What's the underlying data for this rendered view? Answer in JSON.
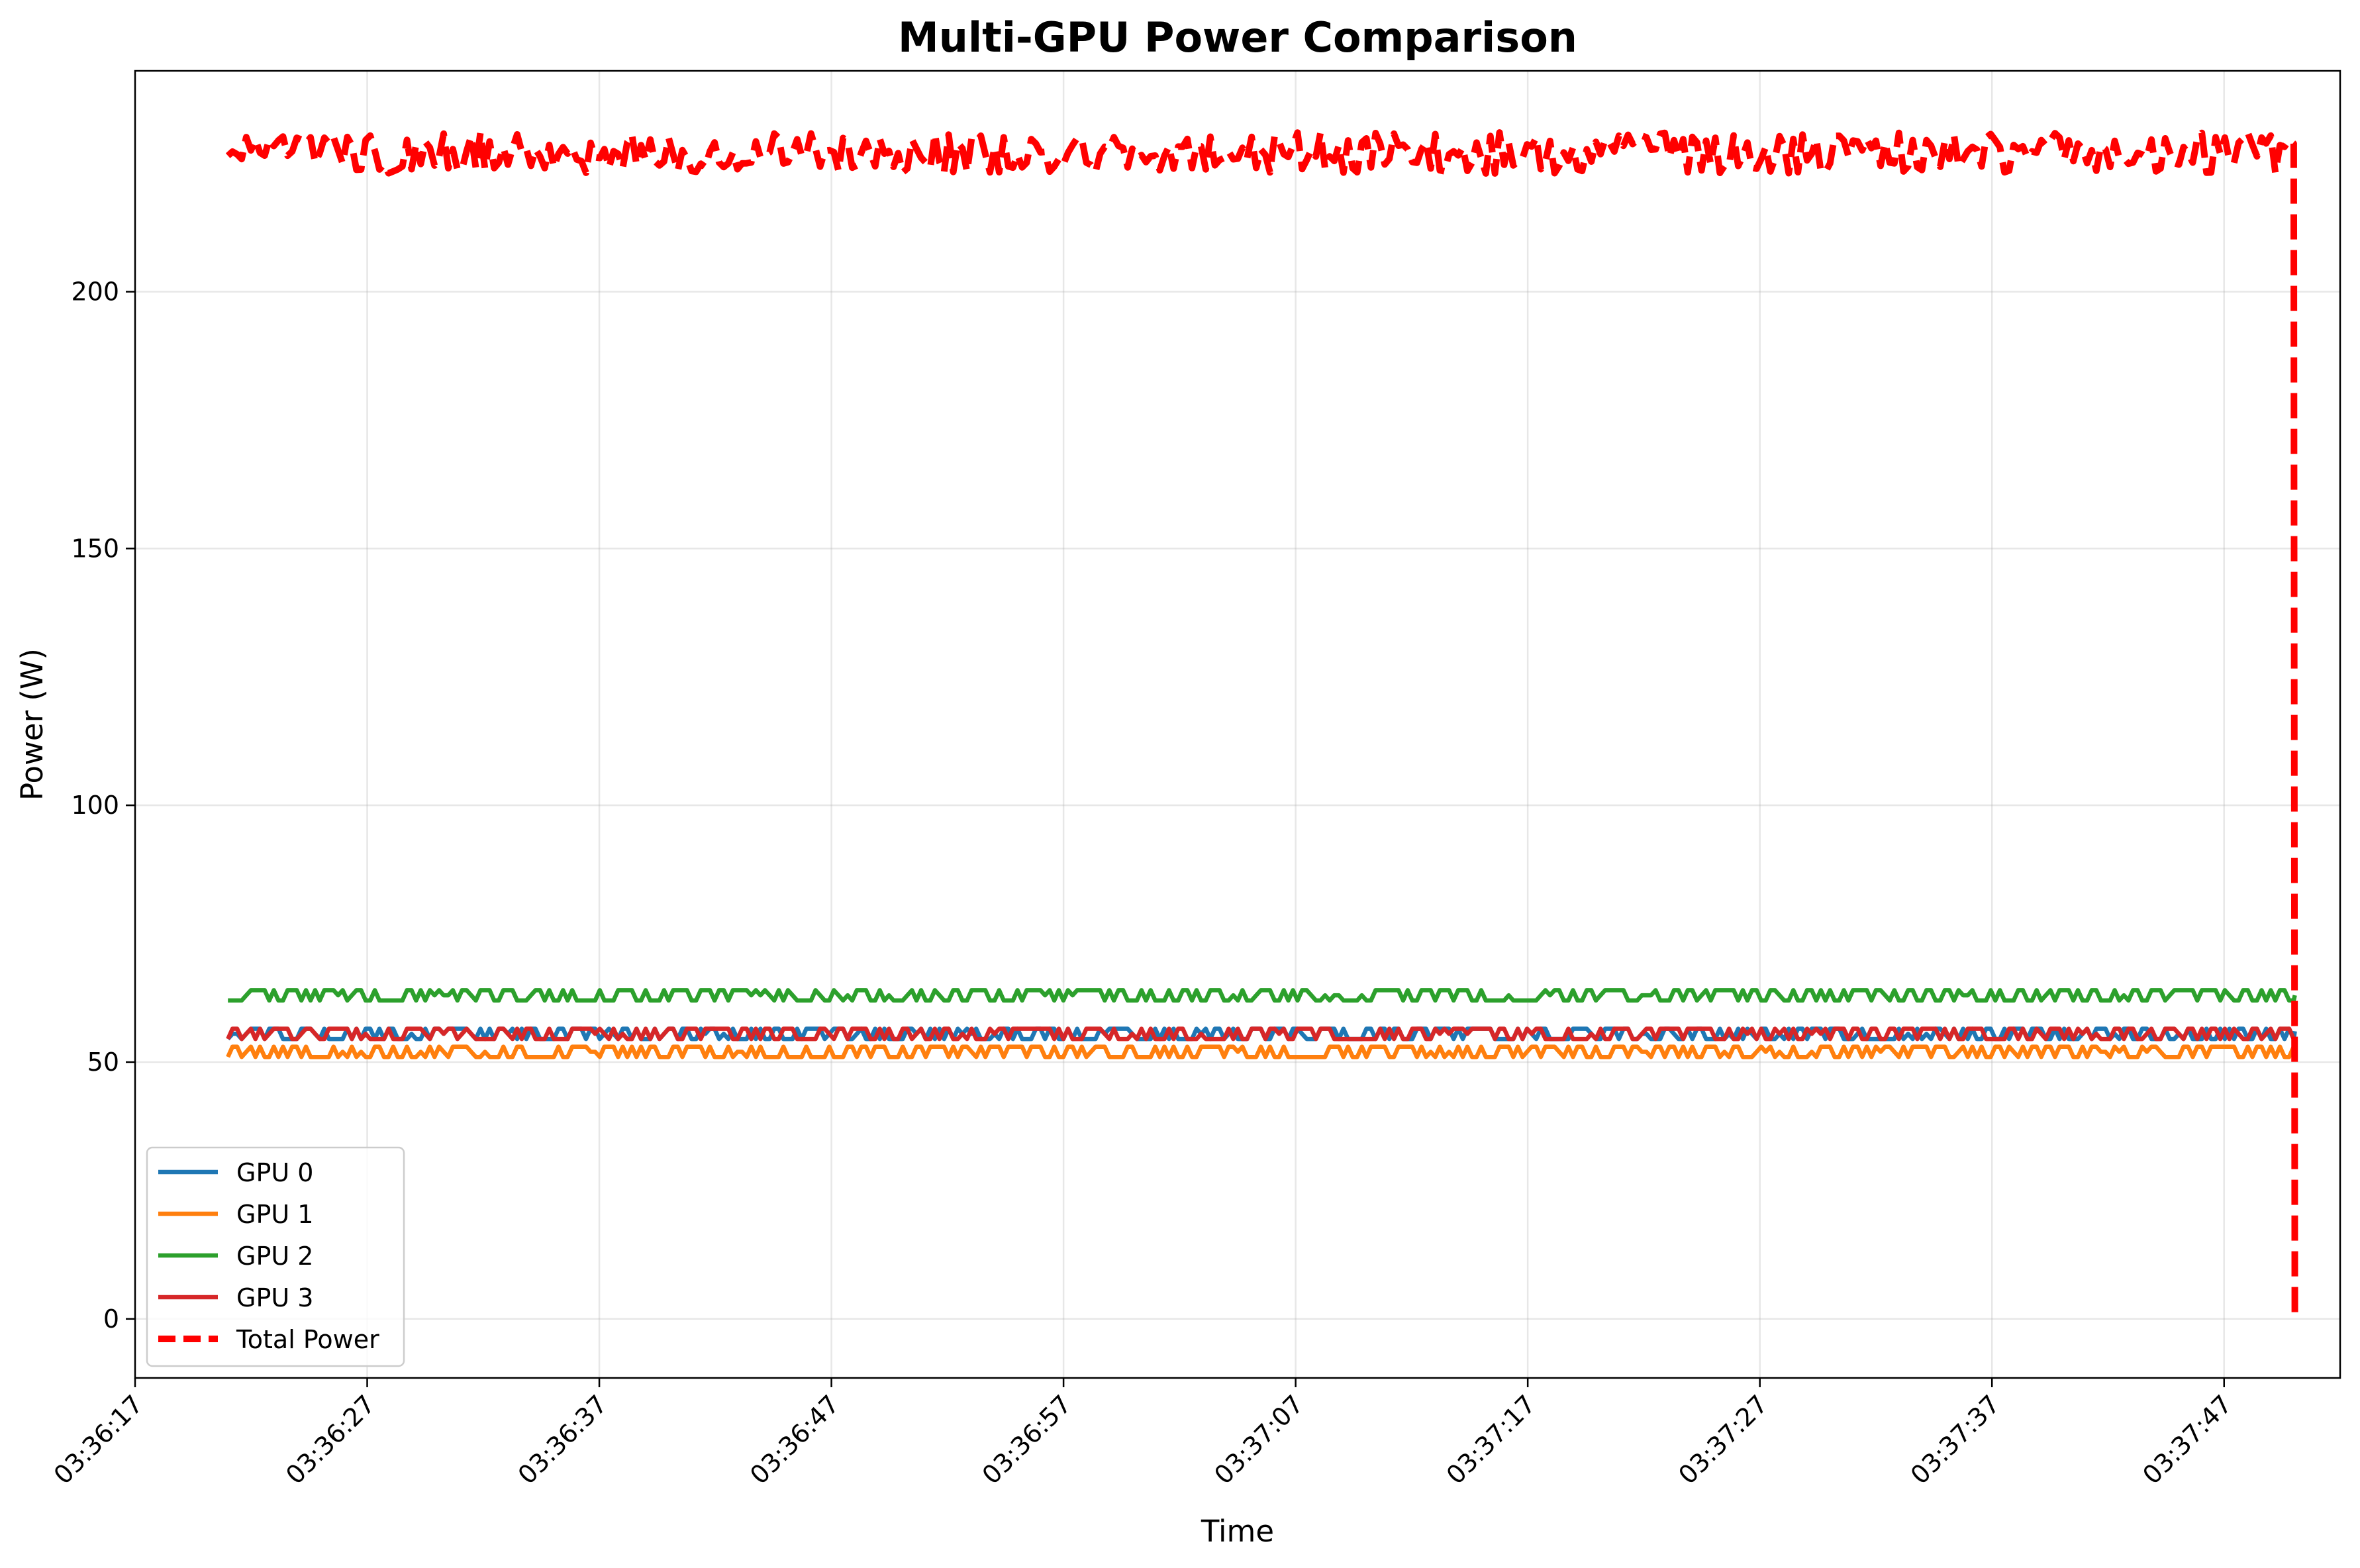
{
  "chart_data": {
    "type": "line",
    "title": "Multi-GPU Power Comparison",
    "xlabel": "Time",
    "ylabel": "Power (W)",
    "x_start": "03:36:21",
    "x_end": "03:37:50",
    "x_range": [
      "03:36:17",
      "03:37:52"
    ],
    "xticks": [
      "03:36:17",
      "03:36:27",
      "03:36:37",
      "03:36:47",
      "03:36:57",
      "03:37:07",
      "03:37:17",
      "03:37:27",
      "03:37:37",
      "03:37:47"
    ],
    "ylim": [
      -11.5,
      243
    ],
    "yticks": [
      0,
      50,
      100,
      150,
      200
    ],
    "grid": true,
    "legend_position": "lower-left",
    "series": [
      {
        "name": "GPU 0",
        "color": "#1f77b4",
        "style": "solid",
        "low": 54.5,
        "high": 56.5,
        "drop_to": 56
      },
      {
        "name": "GPU 1",
        "color": "#ff7f0e",
        "style": "solid",
        "low": 51,
        "high": 53,
        "drop_to": 52
      },
      {
        "name": "GPU 2",
        "color": "#2ca02c",
        "style": "solid",
        "low": 62,
        "high": 64,
        "drop_to": 63
      },
      {
        "name": "GPU 3",
        "color": "#d62728",
        "style": "solid",
        "low": 54.5,
        "high": 56.5,
        "drop_to": 55
      },
      {
        "name": "Total Power",
        "color": "#ff0000",
        "style": "dashed",
        "low": 223,
        "high": 231,
        "drop_to": 0
      }
    ]
  }
}
